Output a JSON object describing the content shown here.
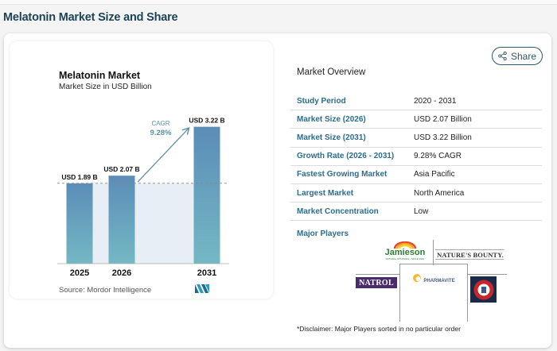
{
  "page": {
    "title": "Melatonin Market Size and Share"
  },
  "chart_card": {
    "title": "Melatonin Market",
    "subtitle": "Market Size in USD Billion",
    "source": "Source: Mordor Intelligence",
    "logo_icon": "mordor-intelligence-logo"
  },
  "chart_data": {
    "type": "bar",
    "title": "Melatonin Market",
    "subtitle": "Market Size in USD Billion",
    "xlabel": "",
    "ylabel": "Market Size in USD Billion",
    "categories": [
      "2025",
      "2026",
      "2031"
    ],
    "values": [
      1.89,
      2.07,
      3.22
    ],
    "data_labels": [
      "USD 1.89 B",
      "USD 2.07 B",
      "USD 3.22 B"
    ],
    "ylim": [
      0,
      3.4
    ],
    "grid": false,
    "reference_line": {
      "value": 1.89,
      "style": "dashed"
    },
    "annotation": {
      "label": "CAGR",
      "value": "9.28%",
      "from": "2026",
      "to": "2031",
      "type": "arrow"
    },
    "colors": {
      "bar_top": "#5b8db8",
      "bar_bottom": "#74b8c4",
      "shade": "#e8eef6",
      "annotation": "#5b8fa8"
    },
    "source": "Source: Mordor Intelligence"
  },
  "share_button": {
    "label": "Share",
    "icon": "share-icon"
  },
  "market_overview": {
    "title": "Market Overview",
    "rows": [
      {
        "label": "Study Period",
        "value": "2020 - 2031"
      },
      {
        "label": "Market Size (2026)",
        "value": "USD 2.07 Billion"
      },
      {
        "label": "Market Size (2031)",
        "value": "USD 3.22 Billion"
      },
      {
        "label": "Growth Rate (2026 - 2031)",
        "value": "9.28% CAGR"
      },
      {
        "label": "Fastest Growing Market",
        "value": "Asia Pacific"
      },
      {
        "label": "Largest Market",
        "value": "North America"
      },
      {
        "label": "Market Concentration",
        "value": "Low"
      }
    ]
  },
  "major_players": {
    "label": "Major Players",
    "players": [
      {
        "name": "Jamieson",
        "tagline": "NATURAL SOURCES · SINCE 1922"
      },
      {
        "name": "NATURE'S BOUNTY."
      },
      {
        "name": "NATROL"
      },
      {
        "name": "PHARMAVITE"
      },
      {
        "name": "Church & Dwight Co., Inc."
      }
    ],
    "disclaimer": "*Disclaimer: Major Players sorted in no particular order"
  },
  "colors": {
    "title_dark": "#1d4357",
    "label_blue": "#2b6d8f",
    "accent_teal": "#5b8fa8"
  }
}
